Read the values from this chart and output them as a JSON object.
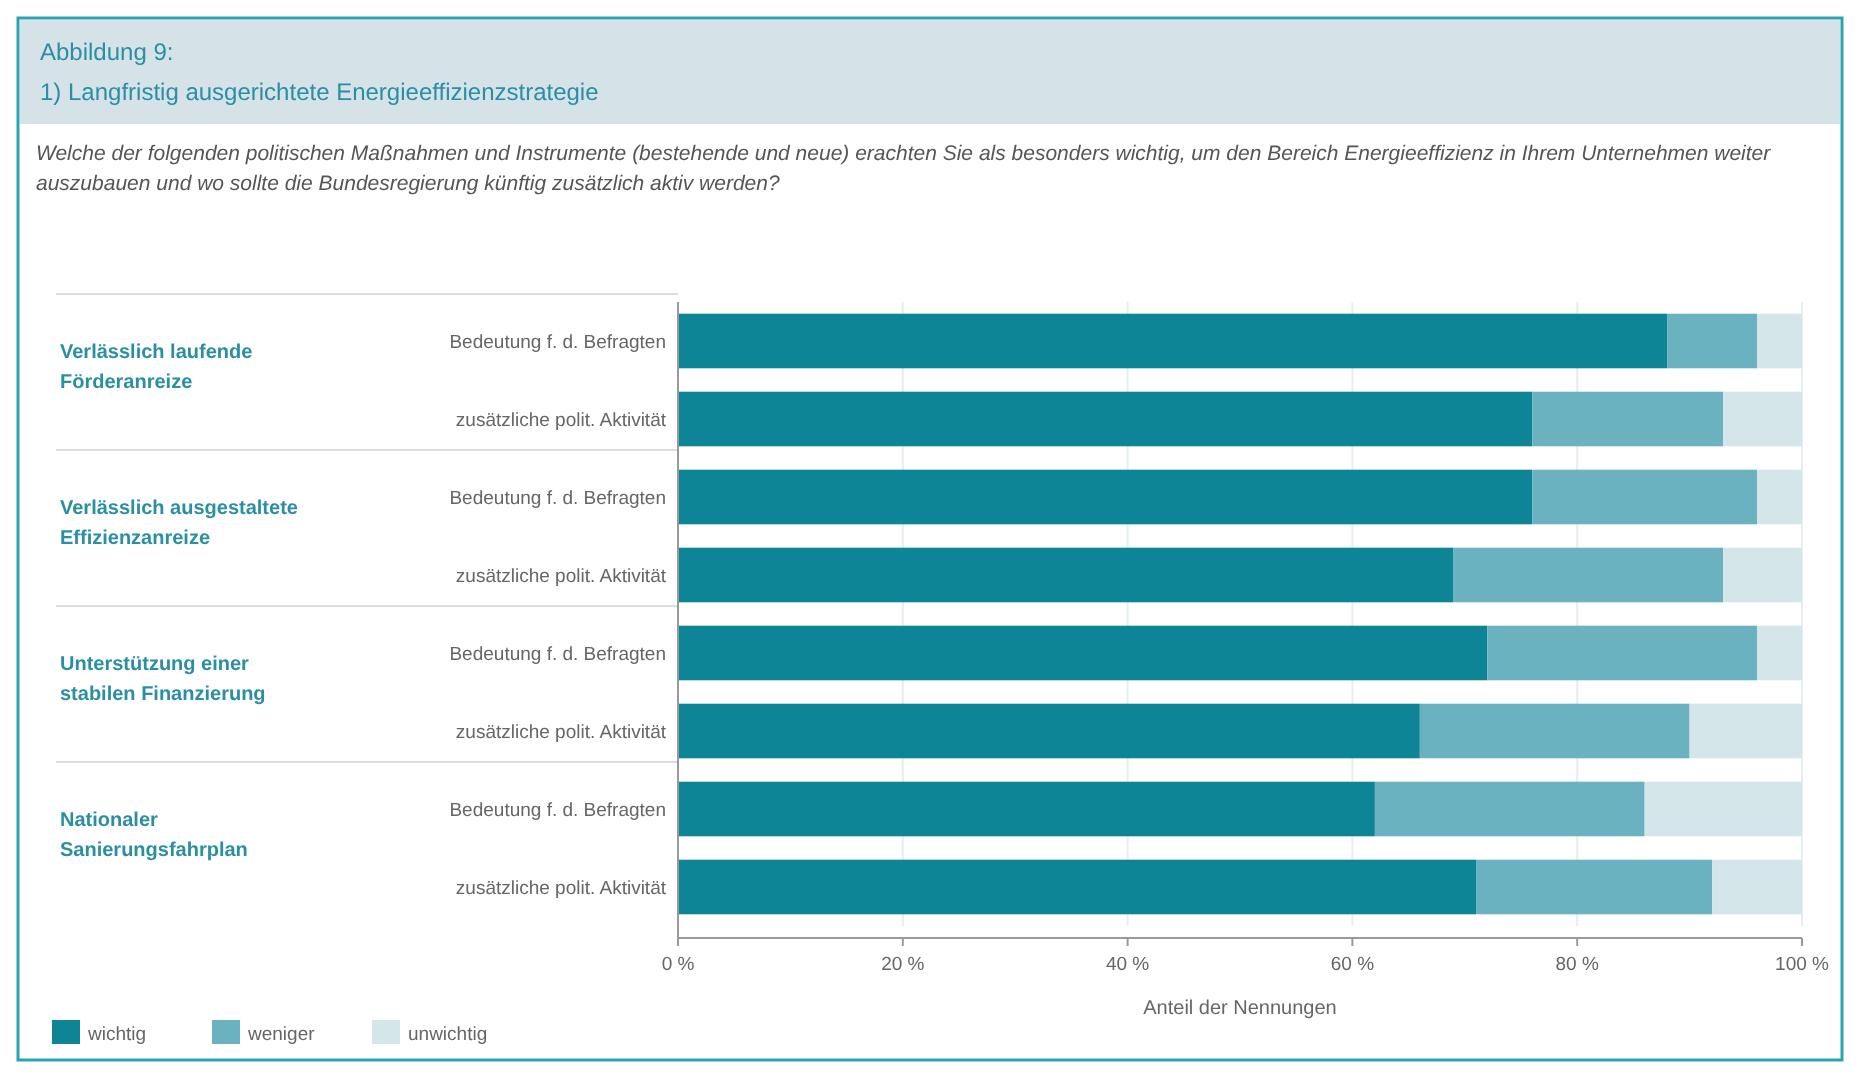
{
  "chart_data": {
    "type": "bar",
    "orientation": "horizontal",
    "stacked": true,
    "title": "Abbildung 9:",
    "subtitle": "1) Langfristig ausgerichtete Energieeffizienzstrategie",
    "annotations": [
      "Welche der folgenden politischen Maßnahmen und Instrumente (bestehende und neue) erachten Sie als besonders wichtig, um den Bereich Energieeffizienz in Ihrem Unternehmen weiter auszubauen und wo sollte die Bundesregierung künftig zusätzlich aktiv werden?",
      "Verlässlich laufende Förderanreize",
      "Verlässlich ausgestaltete Effizienzanreize",
      "Unterstützung einer stabilen Finanzierung",
      "Nationaler Sanierungsfahrplan"
    ],
    "categories": [
      "Bedeutung f. d. Befragten",
      "zusätzliche polit. Aktivität",
      "Bedeutung f. d. Befragten",
      "zusätzliche polit. Aktivität",
      "Bedeutung f. d. Befragten",
      "zusätzliche polit. Aktivität",
      "Bedeutung f. d. Befragten",
      "zusätzliche polit. Aktivität"
    ],
    "series": [
      {
        "name": "wichtig",
        "color": "#0e8597",
        "values": [
          88,
          76,
          76,
          69,
          72,
          66,
          62,
          71
        ]
      },
      {
        "name": "weniger",
        "color": "#6ab2bf",
        "values": [
          8,
          17,
          20,
          24,
          24,
          24,
          24,
          21
        ]
      },
      {
        "name": "unwichtig",
        "color": "#d5e6ea",
        "values": [
          4,
          7,
          4,
          7,
          4,
          10,
          14,
          8
        ]
      }
    ],
    "xlabel": "Anteil der Nennungen",
    "xlim": [
      0,
      100
    ],
    "xticks": [
      {
        "value": 0,
        "label": "0 %"
      },
      {
        "value": 20,
        "label": "20 %"
      },
      {
        "value": 40,
        "label": "40 %"
      },
      {
        "value": 60,
        "label": "60 %"
      },
      {
        "value": 80,
        "label": "80 %"
      },
      {
        "value": 100,
        "label": "100 %"
      }
    ],
    "grid": "x",
    "legend": "bottom left"
  }
}
